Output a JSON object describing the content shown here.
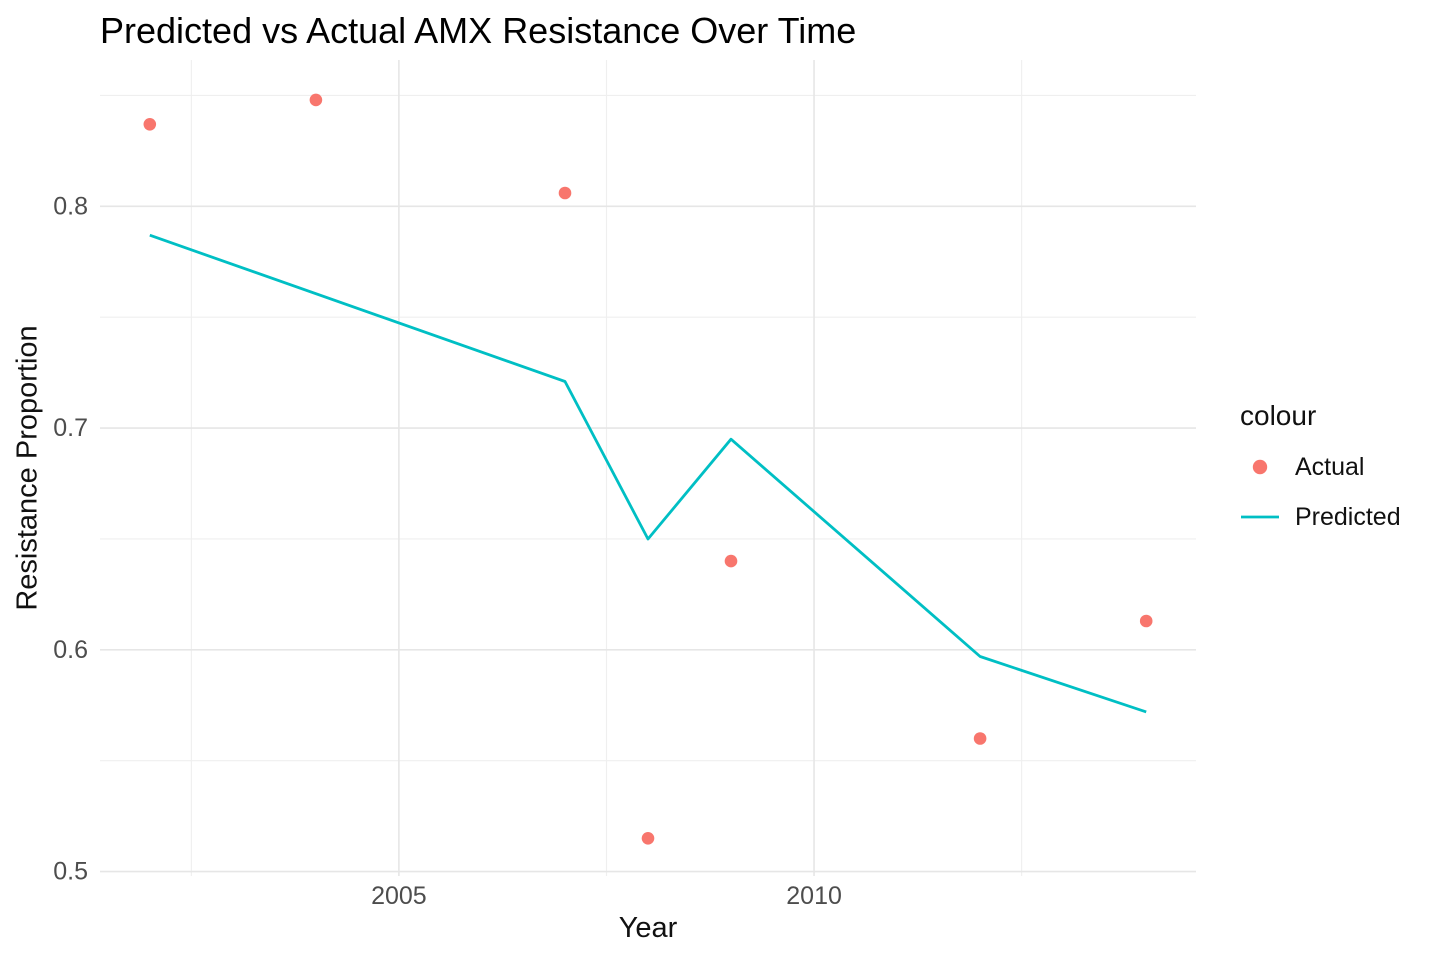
{
  "chart_data": {
    "type": "scatter+line",
    "title": "Predicted vs Actual AMX Resistance Over Time",
    "xlabel": "Year",
    "ylabel": "Resistance Proportion",
    "legend_title": "colour",
    "legend_position": "right",
    "grid": true,
    "xlim": [
      2001.4,
      2014.6
    ],
    "ylim": [
      0.498,
      0.866
    ],
    "x_major_ticks": [
      2005,
      2010
    ],
    "x_tick_labels": [
      "2005",
      "2010"
    ],
    "x_minor_ticks": [
      2002.5,
      2007.5,
      2012.5
    ],
    "y_major_ticks": [
      0.5,
      0.6,
      0.7,
      0.8
    ],
    "y_tick_labels": [
      "0.5",
      "0.6",
      "0.7",
      "0.8"
    ],
    "y_minor_ticks": [
      0.55,
      0.65,
      0.75,
      0.85
    ],
    "series": [
      {
        "name": "Actual",
        "type": "scatter",
        "color": "#F8766D",
        "x": [
          2002,
          2004,
          2007,
          2008,
          2009,
          2012,
          2014
        ],
        "y": [
          0.837,
          0.848,
          0.806,
          0.515,
          0.64,
          0.56,
          0.613
        ]
      },
      {
        "name": "Predicted",
        "type": "line",
        "color": "#00BFC4",
        "x": [
          2002,
          2007,
          2008,
          2009,
          2012,
          2014
        ],
        "y": [
          0.787,
          0.721,
          0.65,
          0.695,
          0.597,
          0.572
        ]
      }
    ],
    "style": {
      "grid_major_color": "#E6E6E6",
      "grid_minor_color": "#EFEFEF",
      "tick_label_color": "#4D4D4D",
      "text_color": "#111111",
      "background": "#FFFFFF"
    }
  }
}
